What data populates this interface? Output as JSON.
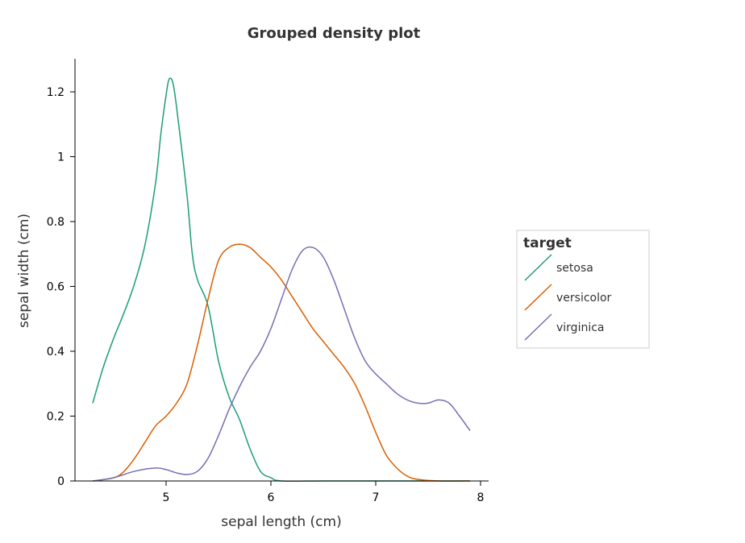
{
  "chart_data": {
    "type": "line",
    "title": "Grouped density plot",
    "xlabel": "sepal length (cm)",
    "ylabel": "sepal width (cm)",
    "xlim": [
      4.3,
      7.9
    ],
    "ylim": [
      0,
      1.3
    ],
    "x_ticks": [
      5,
      6,
      7,
      8
    ],
    "x_tick_labels": [
      "5",
      "6",
      "7",
      "8"
    ],
    "y_ticks": [
      0,
      0.2,
      0.4,
      0.6,
      0.8,
      1,
      1.2
    ],
    "y_tick_labels": [
      "0",
      "0.2",
      "0.4",
      "0.6",
      "0.8",
      "1",
      "1.2"
    ],
    "grid": false,
    "legend": {
      "title": "target",
      "position": "right"
    },
    "series": [
      {
        "name": "setosa",
        "color": "#1b9e77",
        "points": [
          [
            4.3,
            0.24
          ],
          [
            4.4,
            0.35
          ],
          [
            4.5,
            0.44
          ],
          [
            4.6,
            0.52
          ],
          [
            4.7,
            0.61
          ],
          [
            4.8,
            0.73
          ],
          [
            4.9,
            0.92
          ],
          [
            4.95,
            1.07
          ],
          [
            5.0,
            1.19
          ],
          [
            5.03,
            1.24
          ],
          [
            5.07,
            1.22
          ],
          [
            5.12,
            1.1
          ],
          [
            5.2,
            0.88
          ],
          [
            5.25,
            0.7
          ],
          [
            5.3,
            0.62
          ],
          [
            5.4,
            0.54
          ],
          [
            5.5,
            0.37
          ],
          [
            5.6,
            0.26
          ],
          [
            5.7,
            0.19
          ],
          [
            5.8,
            0.1
          ],
          [
            5.9,
            0.03
          ],
          [
            6.0,
            0.01
          ],
          [
            6.1,
            0.0
          ],
          [
            6.5,
            0.0
          ],
          [
            7.0,
            0.0
          ],
          [
            7.5,
            0.0
          ],
          [
            7.9,
            0.0
          ]
        ]
      },
      {
        "name": "versicolor",
        "color": "#d95f02",
        "points": [
          [
            4.3,
            0.0
          ],
          [
            4.5,
            0.01
          ],
          [
            4.6,
            0.03
          ],
          [
            4.7,
            0.07
          ],
          [
            4.8,
            0.12
          ],
          [
            4.9,
            0.17
          ],
          [
            5.0,
            0.2
          ],
          [
            5.1,
            0.24
          ],
          [
            5.2,
            0.3
          ],
          [
            5.3,
            0.42
          ],
          [
            5.4,
            0.56
          ],
          [
            5.5,
            0.68
          ],
          [
            5.6,
            0.72
          ],
          [
            5.7,
            0.73
          ],
          [
            5.8,
            0.72
          ],
          [
            5.9,
            0.69
          ],
          [
            6.0,
            0.66
          ],
          [
            6.1,
            0.62
          ],
          [
            6.2,
            0.57
          ],
          [
            6.3,
            0.52
          ],
          [
            6.4,
            0.47
          ],
          [
            6.5,
            0.43
          ],
          [
            6.6,
            0.39
          ],
          [
            6.7,
            0.35
          ],
          [
            6.8,
            0.3
          ],
          [
            6.9,
            0.23
          ],
          [
            7.0,
            0.15
          ],
          [
            7.1,
            0.08
          ],
          [
            7.2,
            0.04
          ],
          [
            7.3,
            0.015
          ],
          [
            7.4,
            0.005
          ],
          [
            7.6,
            0.0
          ],
          [
            7.9,
            0.0
          ]
        ]
      },
      {
        "name": "virginica",
        "color": "#7570b3",
        "points": [
          [
            4.3,
            0.0
          ],
          [
            4.5,
            0.01
          ],
          [
            4.7,
            0.03
          ],
          [
            4.9,
            0.04
          ],
          [
            5.0,
            0.035
          ],
          [
            5.1,
            0.025
          ],
          [
            5.2,
            0.02
          ],
          [
            5.3,
            0.03
          ],
          [
            5.4,
            0.07
          ],
          [
            5.5,
            0.14
          ],
          [
            5.6,
            0.22
          ],
          [
            5.7,
            0.29
          ],
          [
            5.8,
            0.35
          ],
          [
            5.9,
            0.4
          ],
          [
            6.0,
            0.47
          ],
          [
            6.1,
            0.56
          ],
          [
            6.2,
            0.65
          ],
          [
            6.3,
            0.71
          ],
          [
            6.4,
            0.72
          ],
          [
            6.5,
            0.69
          ],
          [
            6.6,
            0.62
          ],
          [
            6.7,
            0.53
          ],
          [
            6.8,
            0.44
          ],
          [
            6.9,
            0.37
          ],
          [
            7.0,
            0.33
          ],
          [
            7.1,
            0.3
          ],
          [
            7.2,
            0.27
          ],
          [
            7.3,
            0.25
          ],
          [
            7.4,
            0.24
          ],
          [
            7.5,
            0.24
          ],
          [
            7.6,
            0.25
          ],
          [
            7.7,
            0.24
          ],
          [
            7.8,
            0.2
          ],
          [
            7.9,
            0.155
          ]
        ]
      }
    ]
  }
}
